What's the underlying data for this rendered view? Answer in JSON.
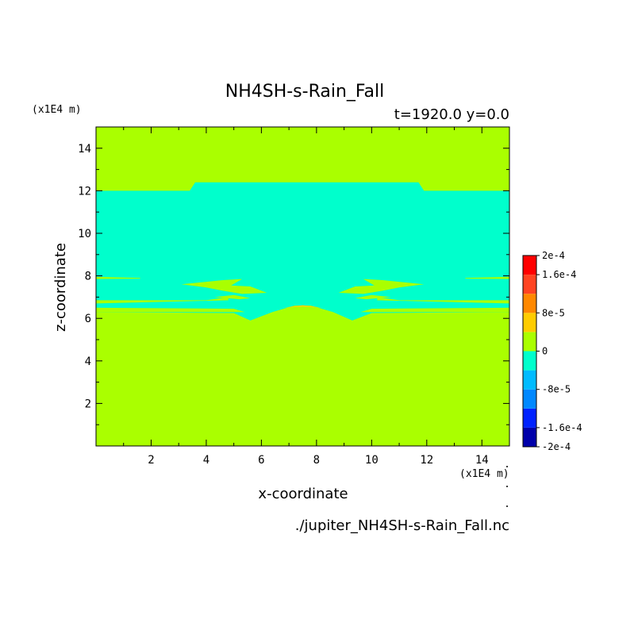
{
  "chart_data": {
    "type": "heatmap",
    "title": "NH4SH-s-Rain_Fall",
    "subtitle": "t=1920.0 y=0.0",
    "xlabel": "x-coordinate",
    "ylabel": "z-coordinate",
    "x_unit": "(x1E4 m)",
    "y_unit": "(x1E4 m)",
    "source_file": "./jupiter_NH4SH-s-Rain_Fall.nc",
    "xlim": [
      0,
      15
    ],
    "ylim": [
      0,
      15
    ],
    "x_ticks": [
      2,
      4,
      6,
      8,
      10,
      12,
      14
    ],
    "y_ticks": [
      2,
      4,
      6,
      8,
      10,
      12,
      14
    ],
    "background_level": 0,
    "fields": [
      {
        "name": "upper-negative-layer",
        "level": -1,
        "color": "#00ffcc",
        "polygon": [
          [
            0,
            6.3
          ],
          [
            0,
            12.0
          ],
          [
            3.4,
            12.0
          ],
          [
            3.6,
            12.4
          ],
          [
            6.0,
            12.4
          ],
          [
            9.0,
            12.4
          ],
          [
            11.7,
            12.4
          ],
          [
            11.9,
            12.0
          ],
          [
            15,
            12.0
          ],
          [
            15,
            6.3
          ],
          [
            10.0,
            6.25
          ],
          [
            9.3,
            5.9
          ],
          [
            8.6,
            6.3
          ],
          [
            7.8,
            6.6
          ],
          [
            7.2,
            6.6
          ],
          [
            6.4,
            6.3
          ],
          [
            5.6,
            5.9
          ],
          [
            5.0,
            6.25
          ]
        ]
      },
      {
        "name": "inner-band-upper",
        "level": 0,
        "color": "#aaff00",
        "polygon": [
          [
            0,
            6.85
          ],
          [
            4.0,
            6.85
          ],
          [
            4.8,
            7.0
          ],
          [
            4.8,
            6.85
          ],
          [
            0,
            6.7
          ]
        ]
      },
      {
        "name": "inner-band-upper-right",
        "level": 0,
        "color": "#aaff00",
        "polygon": [
          [
            15,
            6.85
          ],
          [
            11.0,
            6.85
          ],
          [
            10.2,
            7.0
          ],
          [
            10.2,
            6.85
          ],
          [
            15,
            6.7
          ]
        ]
      },
      {
        "name": "lower-band-left",
        "level": 0,
        "color": "#aaff00",
        "polygon": [
          [
            0,
            6.5
          ],
          [
            5.0,
            6.45
          ],
          [
            5.4,
            6.3
          ],
          [
            0,
            6.3
          ]
        ]
      },
      {
        "name": "lower-band-right",
        "level": 0,
        "color": "#aaff00",
        "polygon": [
          [
            15,
            6.5
          ],
          [
            10.0,
            6.45
          ],
          [
            9.6,
            6.3
          ],
          [
            15,
            6.3
          ]
        ]
      },
      {
        "name": "left-patches",
        "level": 0,
        "color": "#aaff00",
        "polygon": [
          [
            3.1,
            7.6
          ],
          [
            4.6,
            7.8
          ],
          [
            5.3,
            7.85
          ],
          [
            4.9,
            7.55
          ],
          [
            5.6,
            7.5
          ],
          [
            6.2,
            7.2
          ],
          [
            5.3,
            7.15
          ],
          [
            4.6,
            7.3
          ],
          [
            4.0,
            7.45
          ]
        ]
      },
      {
        "name": "left-patches-2",
        "level": 0,
        "color": "#aaff00",
        "polygon": [
          [
            4.3,
            7.0
          ],
          [
            5.0,
            7.1
          ],
          [
            5.6,
            6.95
          ],
          [
            5.2,
            6.9
          ]
        ]
      },
      {
        "name": "right-patches",
        "level": 0,
        "color": "#aaff00",
        "polygon": [
          [
            11.9,
            7.6
          ],
          [
            10.4,
            7.8
          ],
          [
            9.7,
            7.85
          ],
          [
            10.1,
            7.55
          ],
          [
            9.4,
            7.5
          ],
          [
            8.8,
            7.2
          ],
          [
            9.7,
            7.15
          ],
          [
            10.4,
            7.3
          ],
          [
            11.0,
            7.45
          ]
        ]
      },
      {
        "name": "right-patches-2",
        "level": 0,
        "color": "#aaff00",
        "polygon": [
          [
            10.7,
            7.0
          ],
          [
            10.0,
            7.1
          ],
          [
            9.4,
            6.95
          ],
          [
            9.8,
            6.9
          ]
        ]
      },
      {
        "name": "left-streak",
        "level": 0,
        "color": "#aaff00",
        "polygon": [
          [
            0,
            7.95
          ],
          [
            1.6,
            7.9
          ],
          [
            1.6,
            7.87
          ],
          [
            0,
            7.85
          ]
        ]
      },
      {
        "name": "right-streak",
        "level": 0,
        "color": "#aaff00",
        "polygon": [
          [
            15,
            7.95
          ],
          [
            13.4,
            7.9
          ],
          [
            13.4,
            7.87
          ],
          [
            15,
            7.85
          ]
        ]
      },
      {
        "name": "positive-cap",
        "level": 1,
        "color": "#ffcc00",
        "polygon": [
          [
            6.8,
            6.5
          ],
          [
            7.5,
            6.62
          ],
          [
            8.2,
            6.5
          ],
          [
            7.5,
            6.56
          ]
        ]
      }
    ],
    "colorbar": {
      "labels": [
        "2e-4",
        "1.6e-4",
        "8e-5",
        "0",
        "-8e-5",
        "-1.6e-4",
        "-2e-4"
      ],
      "label_levels": [
        0.0002,
        0.00016,
        8e-05,
        0,
        -8e-05,
        -0.00016,
        -0.0002
      ],
      "boundaries": [
        -0.0002,
        -0.00016,
        -0.00012,
        -8e-05,
        -4e-05,
        0,
        4e-05,
        8e-05,
        0.00012,
        0.00016,
        0.0002
      ],
      "colors": [
        "#0000aa",
        "#0022ff",
        "#0088ff",
        "#00bbff",
        "#00ffcc",
        "#aaff00",
        "#ffcc00",
        "#ff8800",
        "#ff4422",
        "#ff0000"
      ]
    }
  }
}
